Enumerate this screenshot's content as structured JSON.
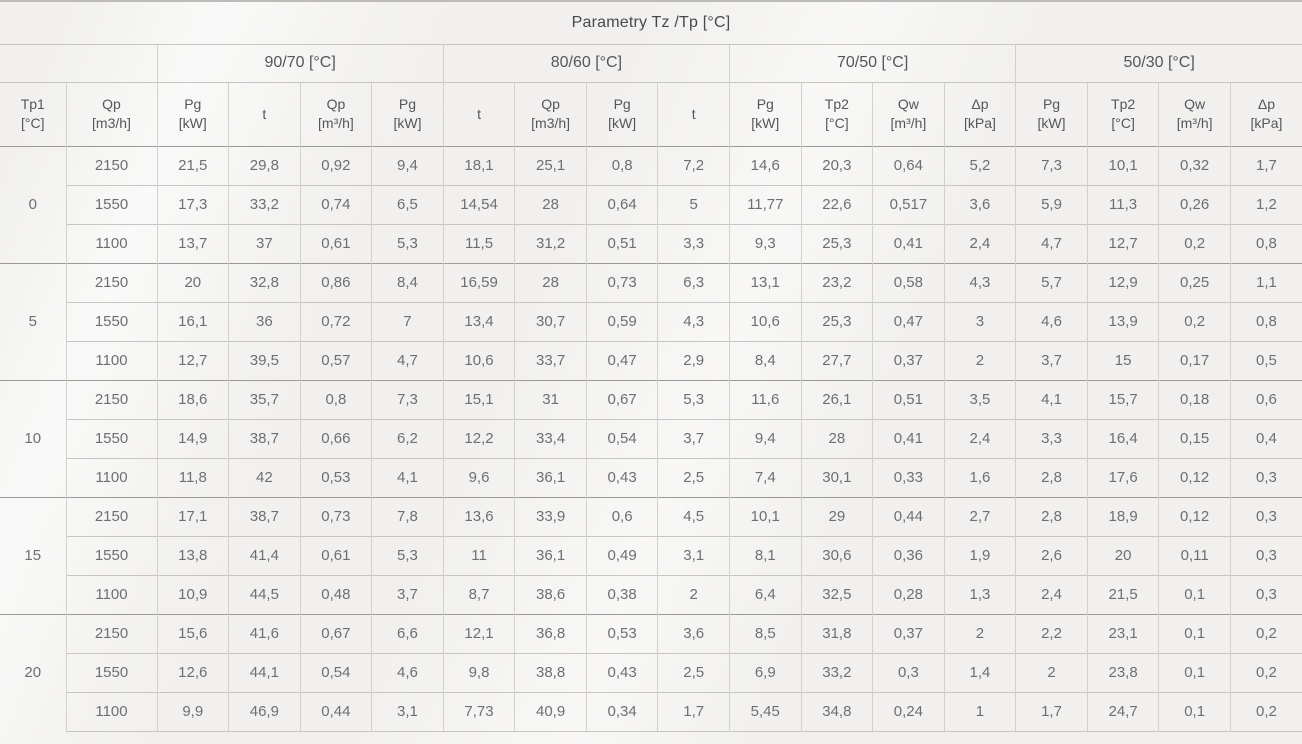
{
  "title": "Parametry Tz /Tp [°C]",
  "table": {
    "groups": [
      "90/70 [°C]",
      "80/60 [°C]",
      "70/50 [°C]",
      "50/30 [°C]"
    ],
    "columns": [
      {
        "label": "Tp1",
        "unit": "[°C]"
      },
      {
        "label": "Qp",
        "unit": "[m3/h]"
      },
      {
        "label": "Pg",
        "unit": "[kW]"
      },
      {
        "label": "t",
        "unit": ""
      },
      {
        "label": "Qp",
        "unit": "[m³/h]"
      },
      {
        "label": "Pg",
        "unit": "[kW]"
      },
      {
        "label": "t",
        "unit": ""
      },
      {
        "label": "Qp",
        "unit": "[m3/h]"
      },
      {
        "label": "Pg",
        "unit": "[kW]"
      },
      {
        "label": "t",
        "unit": ""
      },
      {
        "label": "Pg",
        "unit": "[kW]"
      },
      {
        "label": "Tp2",
        "unit": "[°C]"
      },
      {
        "label": "Qw",
        "unit": "[m³/h]"
      },
      {
        "label": "Δp",
        "unit": "[kPa]"
      },
      {
        "label": "Pg",
        "unit": "[kW]"
      },
      {
        "label": "Tp2",
        "unit": "[°C]"
      },
      {
        "label": "Qw",
        "unit": "[m³/h]"
      },
      {
        "label": "Δp",
        "unit": "[kPa]"
      }
    ],
    "row_groups": [
      {
        "tp1": "0",
        "rows": [
          {
            "qp": "2150",
            "values": [
              "21,5",
              "29,8",
              "0,92",
              "9,4",
              "18,1",
              "25,1",
              "0,8",
              "7,2",
              "14,6",
              "20,3",
              "0,64",
              "5,2",
              "7,3",
              "10,1",
              "0,32",
              "1,7"
            ]
          },
          {
            "qp": "1550",
            "values": [
              "17,3",
              "33,2",
              "0,74",
              "6,5",
              "14,54",
              "28",
              "0,64",
              "5",
              "11,77",
              "22,6",
              "0,517",
              "3,6",
              "5,9",
              "11,3",
              "0,26",
              "1,2"
            ]
          },
          {
            "qp": "1100",
            "values": [
              "13,7",
              "37",
              "0,61",
              "5,3",
              "11,5",
              "31,2",
              "0,51",
              "3,3",
              "9,3",
              "25,3",
              "0,41",
              "2,4",
              "4,7",
              "12,7",
              "0,2",
              "0,8"
            ]
          }
        ]
      },
      {
        "tp1": "5",
        "rows": [
          {
            "qp": "2150",
            "values": [
              "20",
              "32,8",
              "0,86",
              "8,4",
              "16,59",
              "28",
              "0,73",
              "6,3",
              "13,1",
              "23,2",
              "0,58",
              "4,3",
              "5,7",
              "12,9",
              "0,25",
              "1,1"
            ]
          },
          {
            "qp": "1550",
            "values": [
              "16,1",
              "36",
              "0,72",
              "7",
              "13,4",
              "30,7",
              "0,59",
              "4,3",
              "10,6",
              "25,3",
              "0,47",
              "3",
              "4,6",
              "13,9",
              "0,2",
              "0,8"
            ]
          },
          {
            "qp": "1100",
            "values": [
              "12,7",
              "39,5",
              "0,57",
              "4,7",
              "10,6",
              "33,7",
              "0,47",
              "2,9",
              "8,4",
              "27,7",
              "0,37",
              "2",
              "3,7",
              "15",
              "0,17",
              "0,5"
            ]
          }
        ]
      },
      {
        "tp1": "10",
        "rows": [
          {
            "qp": "2150",
            "values": [
              "18,6",
              "35,7",
              "0,8",
              "7,3",
              "15,1",
              "31",
              "0,67",
              "5,3",
              "11,6",
              "26,1",
              "0,51",
              "3,5",
              "4,1",
              "15,7",
              "0,18",
              "0,6"
            ]
          },
          {
            "qp": "1550",
            "values": [
              "14,9",
              "38,7",
              "0,66",
              "6,2",
              "12,2",
              "33,4",
              "0,54",
              "3,7",
              "9,4",
              "28",
              "0,41",
              "2,4",
              "3,3",
              "16,4",
              "0,15",
              "0,4"
            ]
          },
          {
            "qp": "1100",
            "values": [
              "11,8",
              "42",
              "0,53",
              "4,1",
              "9,6",
              "36,1",
              "0,43",
              "2,5",
              "7,4",
              "30,1",
              "0,33",
              "1,6",
              "2,8",
              "17,6",
              "0,12",
              "0,3"
            ]
          }
        ]
      },
      {
        "tp1": "15",
        "rows": [
          {
            "qp": "2150",
            "values": [
              "17,1",
              "38,7",
              "0,73",
              "7,8",
              "13,6",
              "33,9",
              "0,6",
              "4,5",
              "10,1",
              "29",
              "0,44",
              "2,7",
              "2,8",
              "18,9",
              "0,12",
              "0,3"
            ]
          },
          {
            "qp": "1550",
            "values": [
              "13,8",
              "41,4",
              "0,61",
              "5,3",
              "11",
              "36,1",
              "0,49",
              "3,1",
              "8,1",
              "30,6",
              "0,36",
              "1,9",
              "2,6",
              "20",
              "0,11",
              "0,3"
            ]
          },
          {
            "qp": "1100",
            "values": [
              "10,9",
              "44,5",
              "0,48",
              "3,7",
              "8,7",
              "38,6",
              "0,38",
              "2",
              "6,4",
              "32,5",
              "0,28",
              "1,3",
              "2,4",
              "21,5",
              "0,1",
              "0,3"
            ]
          }
        ]
      },
      {
        "tp1": "20",
        "rows": [
          {
            "qp": "2150",
            "values": [
              "15,6",
              "41,6",
              "0,67",
              "6,6",
              "12,1",
              "36,8",
              "0,53",
              "3,6",
              "8,5",
              "31,8",
              "0,37",
              "2",
              "2,2",
              "23,1",
              "0,1",
              "0,2"
            ]
          },
          {
            "qp": "1550",
            "values": [
              "12,6",
              "44,1",
              "0,54",
              "4,6",
              "9,8",
              "38,8",
              "0,43",
              "2,5",
              "6,9",
              "33,2",
              "0,3",
              "1,4",
              "2",
              "23,8",
              "0,1",
              "0,2"
            ]
          },
          {
            "qp": "1100",
            "values": [
              "9,9",
              "46,9",
              "0,44",
              "3,1",
              "7,73",
              "40,9",
              "0,34",
              "1,7",
              "5,45",
              "34,8",
              "0,24",
              "1",
              "1,7",
              "24,7",
              "0,1",
              "0,2"
            ]
          }
        ]
      }
    ],
    "colors": {
      "background": "#f1f0ee",
      "text": "#6e6f71",
      "header_text": "#55565a",
      "grid_light": "#d2d1cf",
      "grid_medium": "#c6c5c3",
      "grid_dark": "#9b9a98"
    }
  }
}
